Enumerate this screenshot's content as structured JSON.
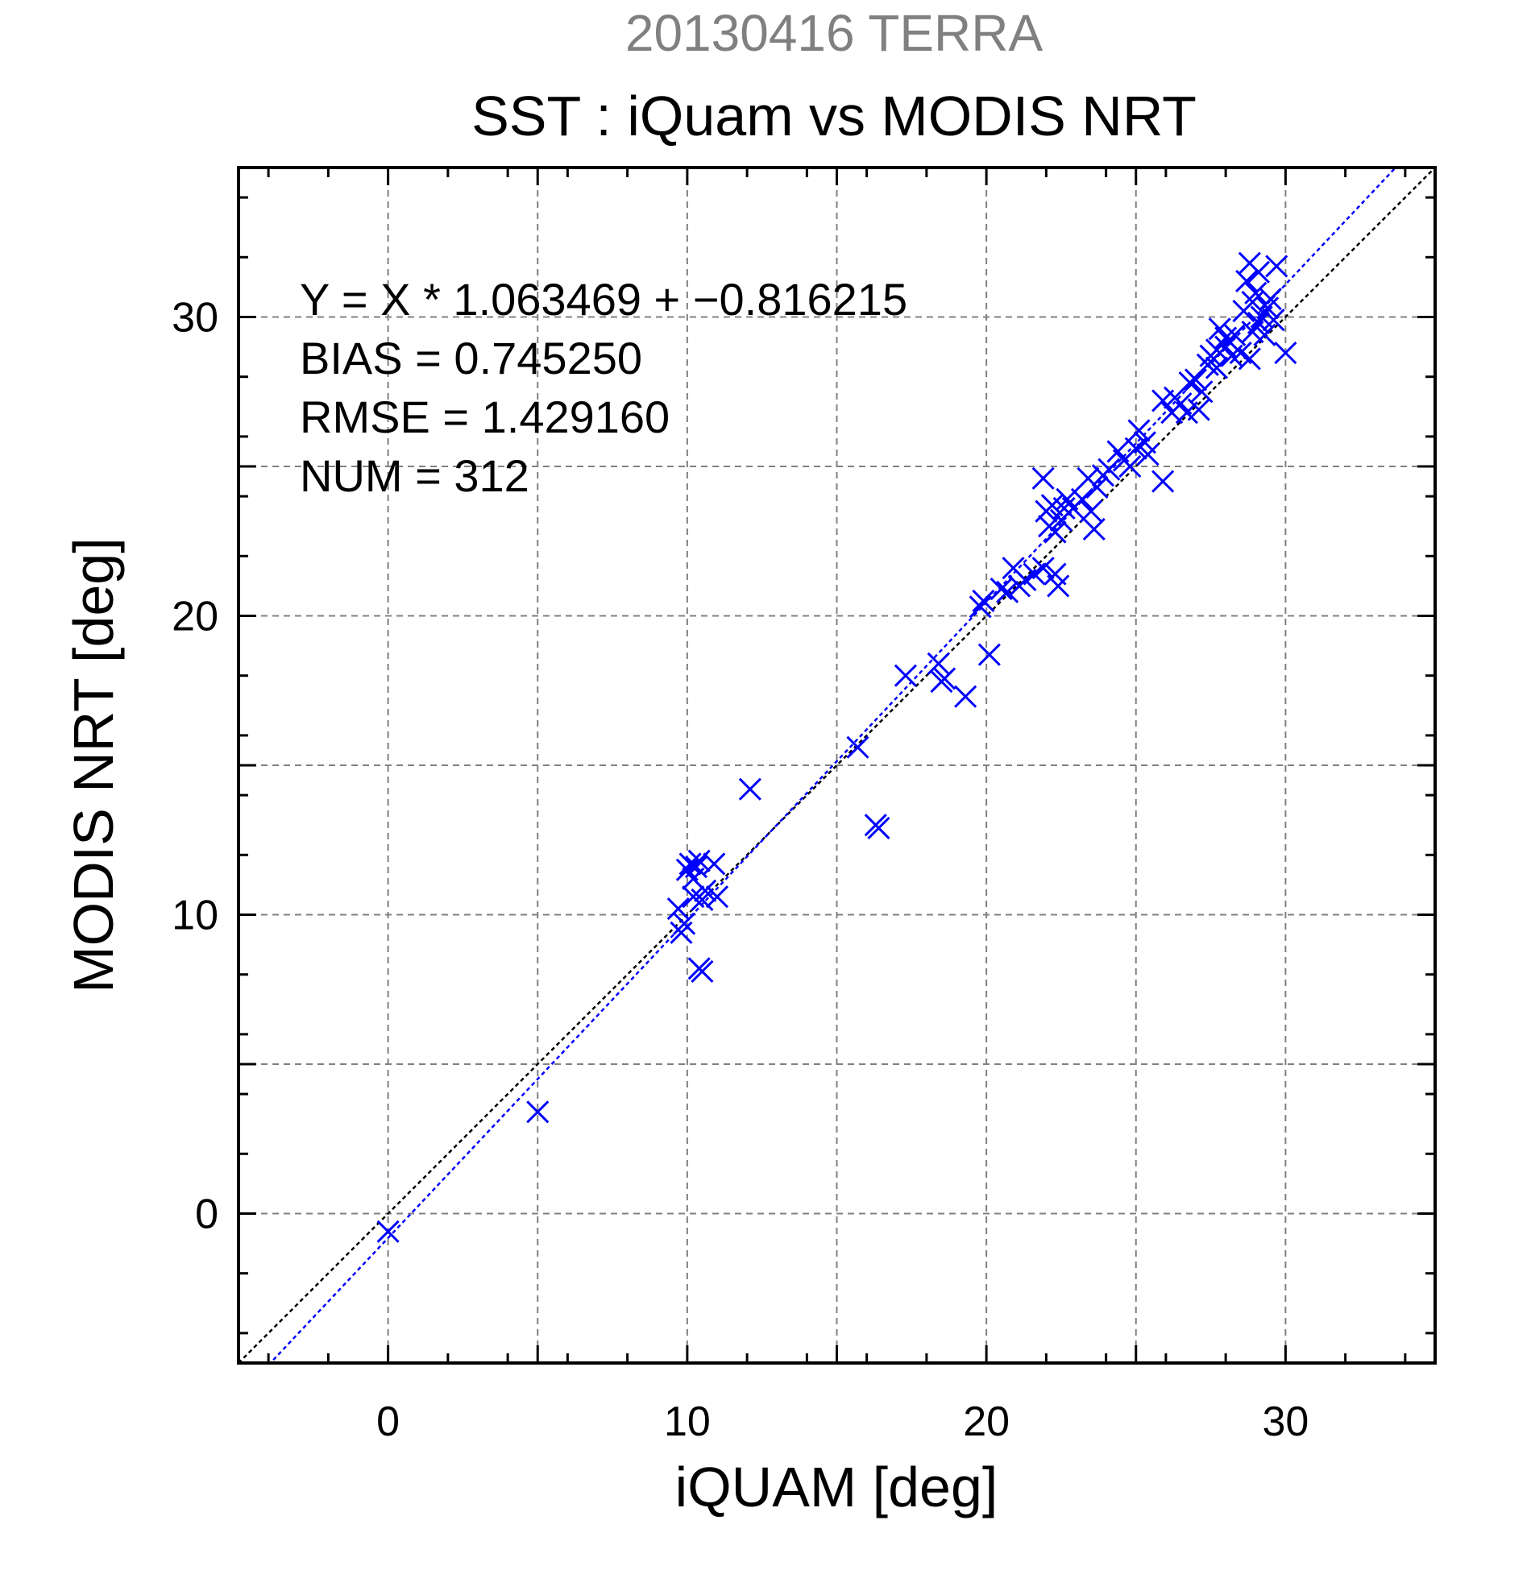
{
  "chart_data": {
    "type": "scatter",
    "subtitle": "20130416 TERRA",
    "title": "SST : iQuam vs MODIS NRT",
    "xlabel": "iQUAM [deg]",
    "ylabel": "MODIS NRT [deg]",
    "xlim": [
      -5,
      35
    ],
    "ylim": [
      -5,
      35
    ],
    "xticks": [
      0,
      10,
      20,
      30
    ],
    "yticks": [
      0,
      10,
      20,
      30
    ],
    "xtick_labels": [
      "0",
      "10",
      "20",
      "30"
    ],
    "ytick_labels": [
      "0",
      "10",
      "20",
      "30"
    ],
    "grid": true,
    "annotations": [
      "Y = X * 1.063469 + −0.816215",
      "BIAS = 0.745250",
      "RMSE = 1.429160",
      "NUM = 312"
    ],
    "fit_line": {
      "slope": 1.063469,
      "intercept": -0.816215,
      "color": "#0000ff"
    },
    "reference_line": {
      "slope": 1,
      "intercept": 0,
      "color": "#000000"
    },
    "marker_color": "#0000ff",
    "marker": "x",
    "colors": {
      "subtitle": "#808080",
      "text": "#000000",
      "grid": "#808080"
    },
    "series": [
      {
        "points": [
          [
            0.0,
            -0.6
          ],
          [
            5.0,
            3.4
          ],
          [
            9.7,
            10.2
          ],
          [
            9.8,
            9.4
          ],
          [
            9.9,
            9.7
          ],
          [
            10.0,
            11.5
          ],
          [
            10.1,
            11.7
          ],
          [
            10.2,
            11.2
          ],
          [
            10.3,
            11.6
          ],
          [
            10.4,
            11.8
          ],
          [
            10.2,
            10.6
          ],
          [
            10.5,
            10.5
          ],
          [
            10.6,
            10.8
          ],
          [
            10.9,
            11.7
          ],
          [
            11.0,
            10.6
          ],
          [
            10.4,
            8.2
          ],
          [
            10.5,
            8.1
          ],
          [
            12.1,
            14.2
          ],
          [
            15.7,
            15.6
          ],
          [
            16.3,
            13.0
          ],
          [
            16.4,
            12.9
          ],
          [
            17.3,
            18.0
          ],
          [
            18.4,
            18.4
          ],
          [
            18.5,
            17.8
          ],
          [
            18.6,
            17.9
          ],
          [
            19.3,
            17.3
          ],
          [
            19.8,
            20.3
          ],
          [
            19.9,
            20.5
          ],
          [
            20.1,
            18.7
          ],
          [
            20.5,
            20.9
          ],
          [
            20.7,
            20.8
          ],
          [
            20.9,
            21.6
          ],
          [
            21.1,
            21.0
          ],
          [
            21.3,
            21.2
          ],
          [
            21.6,
            21.4
          ],
          [
            21.9,
            21.6
          ],
          [
            21.9,
            24.6
          ],
          [
            22.0,
            23.5
          ],
          [
            22.1,
            23.0
          ],
          [
            22.2,
            23.7
          ],
          [
            22.3,
            22.8
          ],
          [
            22.3,
            21.4
          ],
          [
            22.4,
            21.0
          ],
          [
            22.5,
            23.2
          ],
          [
            22.6,
            23.6
          ],
          [
            22.7,
            23.9
          ],
          [
            22.9,
            23.6
          ],
          [
            23.2,
            23.9
          ],
          [
            23.4,
            24.6
          ],
          [
            23.5,
            23.5
          ],
          [
            23.6,
            22.9
          ],
          [
            23.7,
            24.3
          ],
          [
            23.9,
            24.7
          ],
          [
            24.1,
            24.9
          ],
          [
            24.4,
            25.5
          ],
          [
            24.6,
            25.2
          ],
          [
            24.8,
            25.0
          ],
          [
            25.0,
            25.6
          ],
          [
            25.1,
            26.2
          ],
          [
            25.3,
            25.8
          ],
          [
            25.4,
            25.4
          ],
          [
            25.9,
            27.2
          ],
          [
            25.9,
            24.5
          ],
          [
            26.2,
            26.8
          ],
          [
            26.3,
            27.3
          ],
          [
            26.5,
            27.1
          ],
          [
            26.7,
            26.8
          ],
          [
            26.8,
            27.8
          ],
          [
            27.0,
            27.9
          ],
          [
            27.2,
            27.5
          ],
          [
            27.1,
            26.9
          ],
          [
            27.4,
            28.4
          ],
          [
            27.5,
            28.7
          ],
          [
            27.7,
            28.9
          ],
          [
            27.8,
            29.6
          ],
          [
            27.7,
            28.3
          ],
          [
            28.0,
            29.3
          ],
          [
            28.0,
            29.0
          ],
          [
            28.2,
            28.7
          ],
          [
            28.3,
            29.4
          ],
          [
            28.5,
            28.8
          ],
          [
            28.6,
            30.2
          ],
          [
            28.7,
            31.2
          ],
          [
            28.8,
            31.8
          ],
          [
            28.9,
            30.5
          ],
          [
            28.9,
            29.5
          ],
          [
            29.0,
            30.8
          ],
          [
            29.1,
            31.5
          ],
          [
            29.1,
            29.8
          ],
          [
            29.2,
            30.0
          ],
          [
            29.3,
            29.4
          ],
          [
            29.4,
            30.3
          ],
          [
            29.5,
            30.6
          ],
          [
            29.6,
            29.9
          ],
          [
            29.7,
            31.7
          ],
          [
            28.8,
            28.6
          ],
          [
            30.0,
            28.8
          ]
        ]
      }
    ]
  }
}
